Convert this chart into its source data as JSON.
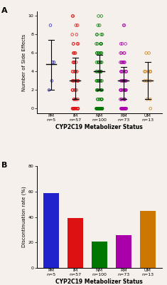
{
  "categories": [
    "PM\nn=5",
    "IM\nn=57",
    "NM\nn=100",
    "RM\nn=73",
    "UM\nn=13"
  ],
  "colors": [
    "#2222CC",
    "#DD1111",
    "#007700",
    "#AA00AA",
    "#CC7700"
  ],
  "bar_values": [
    59,
    39,
    21,
    26,
    45
  ],
  "bar_ylim": [
    0,
    80
  ],
  "bar_yticks": [
    0,
    20,
    40,
    60,
    80
  ],
  "scatter_ylim": [
    -0.5,
    10.5
  ],
  "scatter_yticks": [
    0,
    2,
    4,
    6,
    8,
    10
  ],
  "xlabel": "CYP2C19 Metabolizer Status",
  "ylabel_top": "Number of Side Effects",
  "ylabel_bot": "Discontinuation rate (%)",
  "label_A": "A",
  "label_B": "B",
  "bg_color": "#f5f0eb",
  "PM_data": [
    9,
    5,
    5,
    3,
    2
  ],
  "PM_mean": 4.8,
  "PM_sd_low": 2.0,
  "PM_sd_high": 7.4,
  "IM_data": [
    10,
    10,
    9,
    9,
    8,
    8,
    7,
    7,
    7,
    7,
    6,
    6,
    6,
    6,
    5,
    5,
    5,
    5,
    5,
    4,
    4,
    4,
    4,
    4,
    4,
    3,
    3,
    3,
    3,
    3,
    3,
    3,
    2,
    2,
    2,
    2,
    2,
    2,
    1,
    1,
    1,
    1,
    1,
    0,
    0,
    0,
    0,
    0,
    0,
    0,
    0,
    0,
    0,
    0,
    0,
    0,
    0
  ],
  "IM_mean": 3.0,
  "IM_sd_low": 1.0,
  "IM_sd_high": 5.5,
  "NM_data": [
    10,
    10,
    9,
    9,
    8,
    8,
    8,
    8,
    7,
    7,
    7,
    7,
    7,
    7,
    6,
    6,
    6,
    6,
    6,
    6,
    6,
    5,
    5,
    5,
    5,
    5,
    5,
    5,
    4,
    4,
    4,
    4,
    4,
    4,
    4,
    4,
    4,
    3,
    3,
    3,
    3,
    3,
    3,
    3,
    3,
    3,
    2,
    2,
    2,
    2,
    2,
    2,
    2,
    2,
    1,
    1,
    1,
    1,
    1,
    1,
    1,
    0,
    0,
    0,
    0,
    0,
    0,
    0,
    0,
    0,
    0,
    0,
    0,
    0,
    0,
    0,
    0,
    0,
    0,
    0,
    0,
    0,
    0,
    0,
    0,
    0,
    0,
    0,
    0,
    0,
    0,
    0,
    0,
    0,
    0,
    0,
    0,
    0,
    0,
    0
  ],
  "NM_mean": 4.0,
  "NM_sd_low": 2.0,
  "NM_sd_high": 5.8,
  "RM_data": [
    9,
    9,
    7,
    7,
    7,
    6,
    6,
    6,
    6,
    5,
    5,
    5,
    5,
    5,
    5,
    5,
    4,
    4,
    4,
    4,
    4,
    4,
    4,
    4,
    3,
    3,
    3,
    3,
    3,
    3,
    3,
    3,
    3,
    2,
    2,
    2,
    2,
    2,
    2,
    2,
    2,
    2,
    2,
    2,
    2,
    2,
    1,
    1,
    1,
    1,
    1,
    1,
    1,
    0,
    0,
    0,
    0,
    0,
    0,
    0,
    0,
    0,
    0,
    0,
    0,
    0,
    0,
    0,
    0,
    0,
    0,
    0,
    0
  ],
  "RM_mean": 3.0,
  "RM_sd_low": 1.0,
  "RM_sd_high": 4.5,
  "UM_data": [
    6,
    6,
    4,
    4,
    4,
    4,
    4,
    3,
    3,
    3,
    1,
    1,
    0
  ],
  "UM_mean": 3.0,
  "UM_sd_low": 1.0,
  "UM_sd_high": 5.0
}
